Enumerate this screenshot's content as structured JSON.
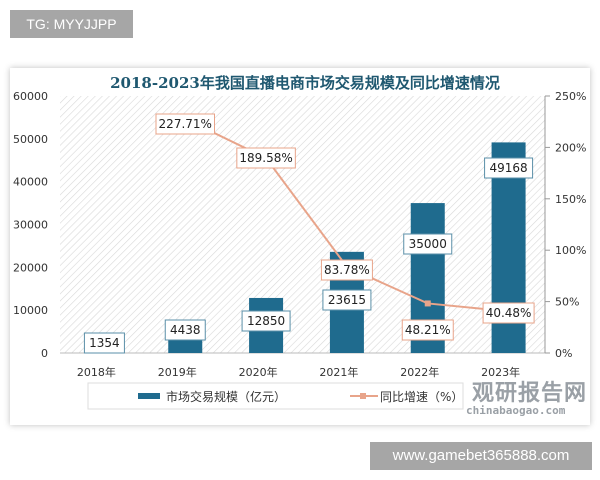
{
  "tag_label": "TG: MYYJJPP",
  "watermark": "www.gamebet365888.com",
  "logo": {
    "cn": "观研报告网",
    "en": "chinabaogao.com"
  },
  "chart_data": {
    "type": "bar+line",
    "title": "2018-2023年我国直播电商市场交易规模及同比增速情况",
    "categories": [
      "2018年",
      "2019年",
      "2020年",
      "2021年",
      "2022年",
      "2023年"
    ],
    "series": [
      {
        "name": "市场交易规模（亿元）",
        "type": "bar",
        "axis": "left",
        "color": "#1f6b8e",
        "values": [
          1354,
          4438,
          12850,
          23615,
          35000,
          49168
        ],
        "labels": [
          "1354",
          "4438",
          "12850",
          "23615",
          "35000",
          "49168"
        ]
      },
      {
        "name": "同比增速（%）",
        "type": "line",
        "axis": "right",
        "color": "#e8a48a",
        "values": [
          null,
          227.71,
          189.58,
          83.78,
          48.21,
          40.48
        ],
        "labels": [
          "",
          "227.71%",
          "189.58%",
          "83.78%",
          "48.21%",
          "40.48%"
        ]
      }
    ],
    "ylim_left": [
      0,
      60000
    ],
    "yticks_left": [
      "0",
      "10000",
      "20000",
      "30000",
      "40000",
      "50000",
      "60000"
    ],
    "ylim_right": [
      0,
      250
    ],
    "yticks_right": [
      "0%",
      "50%",
      "100%",
      "150%",
      "200%",
      "250%"
    ],
    "legend": "bottom",
    "grid": false
  }
}
